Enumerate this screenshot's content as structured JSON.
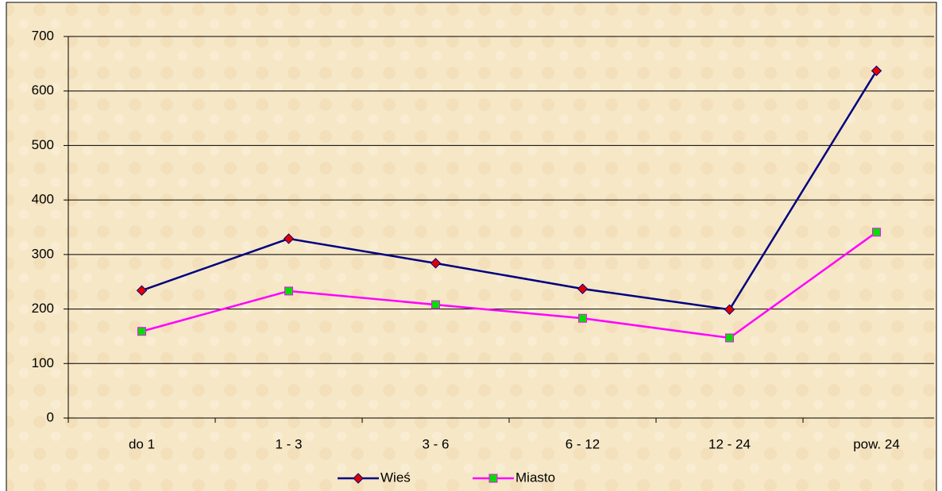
{
  "chart_data": {
    "type": "line",
    "categories": [
      "do 1",
      "1 - 3",
      "3 - 6",
      "6 - 12",
      "12 - 24",
      "pow. 24"
    ],
    "series": [
      {
        "name": "Wieś",
        "color": "#000080",
        "marker": "diamond",
        "marker_color": "#e00000",
        "values": [
          234,
          329,
          284,
          237,
          199,
          637
        ]
      },
      {
        "name": "Miasto",
        "color": "#ff00ff",
        "marker": "square",
        "marker_color": "#00e000",
        "values": [
          159,
          233,
          208,
          183,
          147,
          341
        ]
      }
    ],
    "ylim": [
      0,
      700
    ],
    "yticks": [
      0,
      100,
      200,
      300,
      400,
      500,
      600,
      700
    ],
    "grid": true,
    "legend": "bottom"
  }
}
